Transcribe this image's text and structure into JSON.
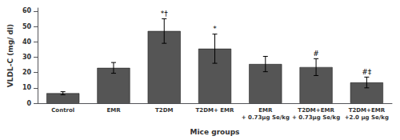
{
  "chart_data": {
    "type": "bar",
    "categories": [
      "Control",
      "EMR",
      "T2DM",
      "T2DM+ EMR",
      "EMR\n+ 0.73μg Se/kg",
      "T2DM+EMR\n+ 0.73μg Se/kg",
      "T2DM+EMR\n+2.0 μg Se/kg"
    ],
    "values": [
      6.5,
      23.0,
      47.0,
      35.5,
      25.5,
      23.5,
      13.5
    ],
    "errors": [
      1.0,
      3.5,
      8.0,
      9.5,
      5.0,
      5.5,
      3.5
    ],
    "color": "#555555",
    "annotations": [
      {
        "category": "T2DM",
        "text": "*†"
      },
      {
        "category": "T2DM+ EMR",
        "text": "*"
      },
      {
        "category": "T2DM+EMR\n+ 0.73μg Se/kg",
        "text": "#"
      },
      {
        "category": "T2DM+EMR\n+2.0 μg Se/kg",
        "text": "#‡"
      }
    ],
    "xlabel": "Mice groups",
    "ylabel": "VLDL-C (mg/ dl)",
    "ylim": [
      0,
      62
    ],
    "yticks": [
      0,
      10,
      20,
      30,
      40,
      50,
      60
    ],
    "grid": false
  }
}
